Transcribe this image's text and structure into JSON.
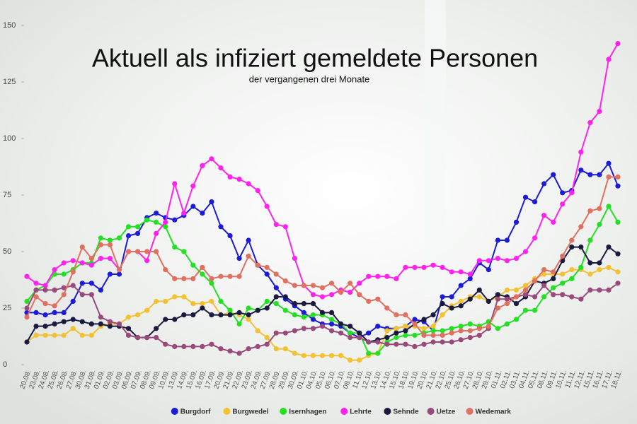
{
  "chart_data": {
    "type": "line",
    "title": "Aktuell als infiziert gemeldete Personen",
    "subtitle": "der vergangenen drei Monate",
    "categories": [
      "20.08.",
      "23.08.",
      "24.08.",
      "25.08.",
      "26.08.",
      "27.08.",
      "30.08.",
      "31.08.",
      "01.09.",
      "02.09.",
      "03.09.",
      "06.09.",
      "07.09.",
      "08.09.",
      "09.09.",
      "10.09.",
      "13.09.",
      "14.09.",
      "15.09.",
      "16.09.",
      "17.09.",
      "20.09.",
      "21.09.",
      "22.09.",
      "23.09.",
      "24.09.",
      "27.09.",
      "28.09.",
      "29.09.",
      "30.09.",
      "01.10.",
      "04.10.",
      "05.10.",
      "06.10.",
      "07.10.",
      "08.10.",
      "11.10.",
      "12.10.",
      "13.10.",
      "14.10.",
      "15.10.",
      "18.10.",
      "19.10.",
      "20.10.",
      "21.10.",
      "22.10.",
      "25.10.",
      "26.10.",
      "27.10.",
      "28.10.",
      "29.10.",
      "01.11.",
      "02.11.",
      "03.11.",
      "04.11.",
      "05.11.",
      "08.11.",
      "09.11.",
      "10.11.",
      "11.11.",
      "12.11.",
      "15.11.",
      "16.11.",
      "17.11.",
      "18.11."
    ],
    "series": [
      {
        "name": "Burgdorf",
        "color": "#1c1cd8",
        "values": [
          23,
          23,
          22,
          23,
          23,
          28,
          36,
          36,
          33,
          40,
          40,
          57,
          58,
          65,
          67,
          65,
          64,
          66,
          70,
          67,
          72,
          61,
          57,
          47,
          55,
          44,
          40,
          34,
          29,
          26,
          23,
          20,
          18,
          18,
          17,
          14,
          12,
          14,
          17,
          16,
          16,
          17,
          20,
          19,
          15,
          30,
          30,
          35,
          38,
          45,
          42,
          55,
          55,
          63,
          74,
          72,
          80,
          84,
          76,
          77,
          86,
          84,
          84,
          89,
          79
        ]
      },
      {
        "name": "Burgwedel",
        "color": "#f2c232",
        "values": [
          10,
          13,
          13,
          13,
          13,
          16,
          13,
          13,
          17,
          18,
          18,
          21,
          22,
          24,
          28,
          28,
          30,
          30,
          27,
          27,
          28,
          22,
          23,
          22,
          20,
          15,
          12,
          7,
          7,
          5,
          4,
          4,
          4,
          4,
          4,
          2,
          2,
          4,
          5,
          15,
          16,
          17,
          17,
          16,
          17,
          22,
          26,
          28,
          30,
          30,
          28,
          30,
          33,
          33,
          35,
          38,
          40,
          40,
          40,
          42,
          42,
          40,
          42,
          43,
          41
        ]
      },
      {
        "name": "Isernhagen",
        "color": "#22e022",
        "values": [
          28,
          33,
          35,
          40,
          40,
          42,
          45,
          45,
          56,
          55,
          56,
          61,
          61,
          64,
          63,
          61,
          52,
          50,
          44,
          40,
          36,
          28,
          24,
          18,
          25,
          24,
          28,
          27,
          24,
          22,
          21,
          22,
          22,
          20,
          18,
          14,
          14,
          5,
          5,
          10,
          12,
          13,
          13,
          14,
          15,
          15,
          16,
          17,
          18,
          17,
          19,
          16,
          18,
          20,
          24,
          24,
          30,
          34,
          36,
          38,
          43,
          55,
          62,
          70,
          63
        ]
      },
      {
        "name": "Lehrte",
        "color": "#ff22ee",
        "values": [
          39,
          36,
          35,
          42,
          45,
          46,
          45,
          44,
          47,
          47,
          42,
          50,
          50,
          46,
          58,
          63,
          80,
          67,
          79,
          88,
          91,
          87,
          83,
          82,
          80,
          77,
          70,
          62,
          61,
          47,
          35,
          31,
          30,
          31,
          33,
          32,
          36,
          39,
          39,
          39,
          38,
          43,
          43,
          43,
          44,
          43,
          41,
          41,
          40,
          46,
          46,
          47,
          46,
          47,
          50,
          56,
          66,
          63,
          71,
          76,
          94,
          107,
          112,
          135,
          142
        ]
      },
      {
        "name": "Sehnde",
        "color": "#1a1a40",
        "values": [
          10,
          17,
          17,
          18,
          19,
          20,
          19,
          18,
          18,
          17,
          17,
          16,
          12,
          12,
          16,
          20,
          20,
          22,
          22,
          25,
          22,
          22,
          22,
          23,
          22,
          24,
          25,
          30,
          30,
          27,
          27,
          27,
          23,
          23,
          18,
          17,
          14,
          10,
          11,
          12,
          14,
          15,
          18,
          20,
          22,
          27,
          25,
          26,
          29,
          33,
          28,
          31,
          30,
          27,
          30,
          37,
          36,
          38,
          46,
          52,
          52,
          45,
          45,
          52,
          49
        ]
      },
      {
        "name": "Uetze",
        "color": "#9a4a7a",
        "values": [
          25,
          33,
          33,
          33,
          34,
          35,
          31,
          31,
          21,
          19,
          18,
          13,
          12,
          12,
          12,
          9,
          8,
          8,
          8,
          8,
          9,
          7,
          6,
          5,
          7,
          8,
          9,
          14,
          14,
          15,
          16,
          16,
          17,
          15,
          14,
          12,
          12,
          10,
          10,
          9,
          9,
          9,
          8,
          9,
          10,
          10,
          10,
          11,
          12,
          13,
          16,
          29,
          29,
          30,
          31,
          30,
          35,
          31,
          31,
          30,
          29,
          33,
          33,
          33,
          36
        ]
      },
      {
        "name": "Wedemark",
        "color": "#e07060",
        "values": [
          21,
          30,
          27,
          26,
          31,
          41,
          52,
          47,
          53,
          53,
          42,
          50,
          50,
          50,
          50,
          42,
          38,
          38,
          38,
          43,
          38,
          39,
          39,
          39,
          48,
          44,
          43,
          40,
          37,
          35,
          35,
          35,
          34,
          36,
          32,
          36,
          31,
          28,
          29,
          25,
          22,
          22,
          18,
          13,
          13,
          13,
          14,
          15,
          15,
          16,
          17,
          25,
          27,
          30,
          33,
          37,
          42,
          41,
          48,
          55,
          61,
          68,
          69,
          83,
          83
        ]
      }
    ],
    "ylim": [
      0,
      150
    ],
    "yticks": [
      0,
      25,
      50,
      75,
      100,
      125,
      150
    ],
    "legend": "bottom"
  }
}
